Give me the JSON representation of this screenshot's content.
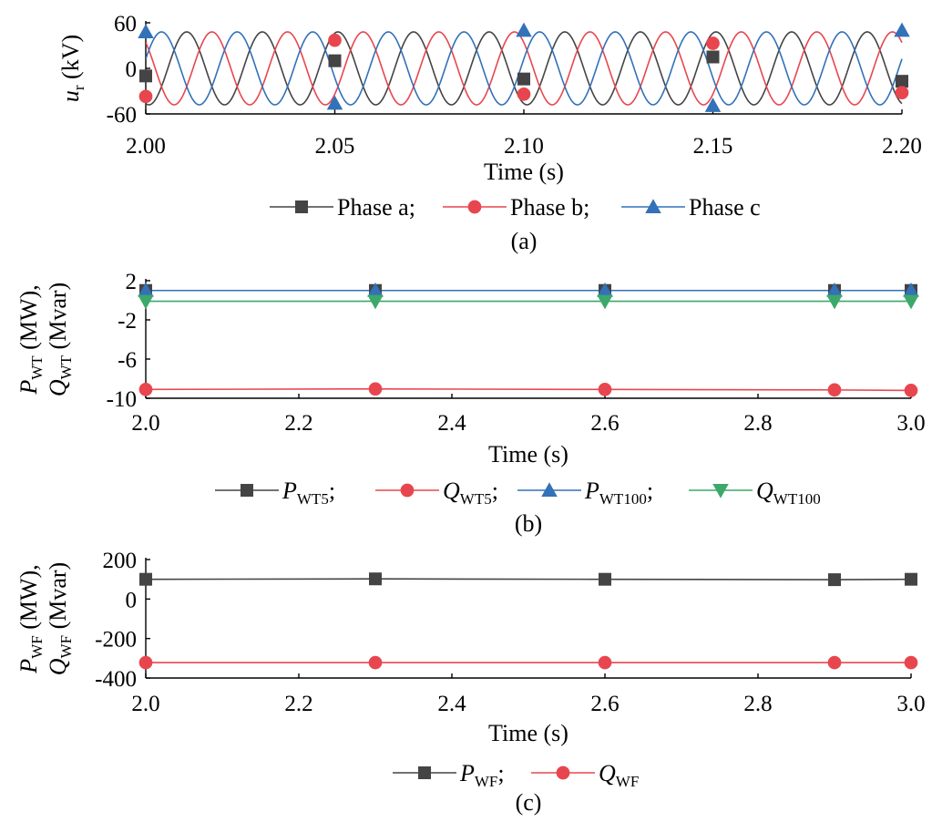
{
  "colors": {
    "phase_a": "#444444",
    "phase_b": "#e8464f",
    "phase_c": "#3371b8",
    "q_wt100": "#3ca86a"
  },
  "chart_data": [
    {
      "type": "line",
      "caption": "(a)",
      "xlabel": "Time (s)",
      "ylabel": {
        "main": "u",
        "sub": "r",
        "unit": " (kV)"
      },
      "xlim": [
        2.0,
        2.2
      ],
      "ylim": [
        -60,
        60
      ],
      "xticks": [
        "2.00",
        "2.05",
        "2.10",
        "2.15",
        "2.20"
      ],
      "yticks": [
        "60",
        "0",
        "-60"
      ],
      "amplitude": 48,
      "frequency_hz": 50,
      "legend": [
        "Phase a;",
        "Phase b;",
        "Phase c"
      ],
      "series": [
        {
          "name": "Phase a",
          "marker": "square",
          "color": "#444444",
          "phase_deg": -105,
          "markers": [
            [
              2.0,
              -10
            ],
            [
              2.05,
              10
            ],
            [
              2.1,
              -14
            ],
            [
              2.15,
              15
            ],
            [
              2.2,
              -17
            ]
          ]
        },
        {
          "name": "Phase b",
          "marker": "circle",
          "color": "#e8464f",
          "phase_deg": 135,
          "markers": [
            [
              2.0,
              -37
            ],
            [
              2.05,
              37
            ],
            [
              2.1,
              -34
            ],
            [
              2.15,
              33
            ],
            [
              2.2,
              -32
            ]
          ]
        },
        {
          "name": "Phase c",
          "marker": "triangle-up",
          "color": "#3371b8",
          "phase_deg": 15,
          "markers": [
            [
              2.0,
              48
            ],
            [
              2.05,
              -46
            ],
            [
              2.1,
              50
            ],
            [
              2.15,
              -49
            ],
            [
              2.2,
              50
            ]
          ]
        }
      ]
    },
    {
      "type": "line",
      "caption": "(b)",
      "xlabel": "Time (s)",
      "ylabel": {
        "line1": {
          "main": "P",
          "sub": "WT",
          "unit": " (MW),"
        },
        "line2": {
          "main": "Q",
          "sub": "WT",
          "unit": " (Mvar)"
        }
      },
      "xlim": [
        2.0,
        3.0
      ],
      "ylim": [
        -10,
        2
      ],
      "xticks": [
        "2.0",
        "2.2",
        "2.4",
        "2.6",
        "2.8",
        "3.0"
      ],
      "yticks": [
        "2",
        "-2",
        "-6",
        "-10"
      ],
      "legend": [
        {
          "main": "P",
          "sub": "WT5",
          "suffix": ";"
        },
        {
          "main": "Q",
          "sub": "WT5",
          "suffix": ";"
        },
        {
          "main": "P",
          "sub": "WT100",
          "suffix": ";"
        },
        {
          "main": "Q",
          "sub": "WT100",
          "suffix": ""
        }
      ],
      "series": [
        {
          "name": "P_WT5",
          "marker": "square",
          "color": "#444444",
          "x": [
            2.0,
            2.3,
            2.6,
            2.9,
            3.0
          ],
          "y": [
            1.0,
            1.0,
            1.0,
            1.0,
            1.0
          ]
        },
        {
          "name": "Q_WT5",
          "marker": "circle",
          "color": "#e8464f",
          "x": [
            2.0,
            2.3,
            2.6,
            2.9,
            3.0
          ],
          "y": [
            -9.1,
            -9.05,
            -9.1,
            -9.15,
            -9.2
          ]
        },
        {
          "name": "P_WT100",
          "marker": "triangle-up",
          "color": "#3371b8",
          "x": [
            2.0,
            2.3,
            2.6,
            2.9,
            3.0
          ],
          "y": [
            1.0,
            1.0,
            1.0,
            1.0,
            1.0
          ]
        },
        {
          "name": "Q_WT100",
          "marker": "triangle-down",
          "color": "#3ca86a",
          "x": [
            2.0,
            2.3,
            2.6,
            2.9,
            3.0
          ],
          "y": [
            -0.1,
            -0.1,
            -0.1,
            -0.1,
            -0.1
          ]
        }
      ]
    },
    {
      "type": "line",
      "caption": "(c)",
      "xlabel": "Time (s)",
      "ylabel": {
        "line1": {
          "main": "P",
          "sub": "WF",
          "unit": " (MW),"
        },
        "line2": {
          "main": "Q",
          "sub": "WF",
          "unit": " (Mvar)"
        }
      },
      "xlim": [
        2.0,
        3.0
      ],
      "ylim": [
        -400,
        200
      ],
      "xticks": [
        "2.0",
        "2.2",
        "2.4",
        "2.6",
        "2.8",
        "3.0"
      ],
      "yticks": [
        "200",
        "0",
        "-200",
        "-400"
      ],
      "legend": [
        {
          "main": "P",
          "sub": "WF",
          "suffix": ";"
        },
        {
          "main": "Q",
          "sub": "WF",
          "suffix": ""
        }
      ],
      "series": [
        {
          "name": "P_WF",
          "marker": "square",
          "color": "#444444",
          "x": [
            2.0,
            2.3,
            2.6,
            2.9,
            3.0
          ],
          "y": [
            100,
            102,
            100,
            98,
            100
          ]
        },
        {
          "name": "Q_WF",
          "marker": "circle",
          "color": "#e8464f",
          "x": [
            2.0,
            2.3,
            2.6,
            2.9,
            3.0
          ],
          "y": [
            -322,
            -322,
            -322,
            -322,
            -322
          ]
        }
      ]
    }
  ]
}
